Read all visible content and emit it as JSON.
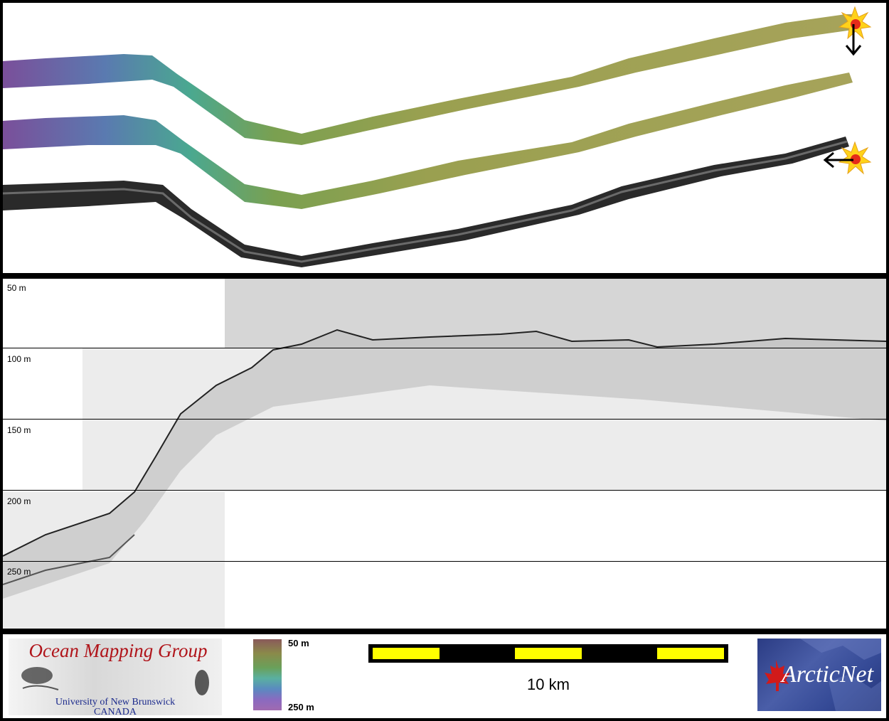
{
  "depth_labels": [
    "50 m",
    "100 m",
    "150 m",
    "200 m",
    "250 m"
  ],
  "legend": {
    "org_title": "Ocean Mapping Group",
    "org_university": "University of New Brunswick",
    "org_country": "CANADA",
    "colorbar_top": "50 m",
    "colorbar_bottom": "250 m",
    "scale_label": "10 km",
    "partner_logo": "ArcticNet"
  },
  "icons": {
    "start_marker": "explosion-star-icon",
    "arrow_down": "arrow-down-icon",
    "arrow_left": "arrow-left-icon",
    "maple_leaf": "maple-leaf-icon"
  },
  "colors": {
    "marker_yellow": "#ffd21a",
    "marker_red": "#e52b1a",
    "scale_yellow": "#ffff00",
    "omg_red": "#b0141a",
    "omg_blue": "#1b2a8c"
  }
}
